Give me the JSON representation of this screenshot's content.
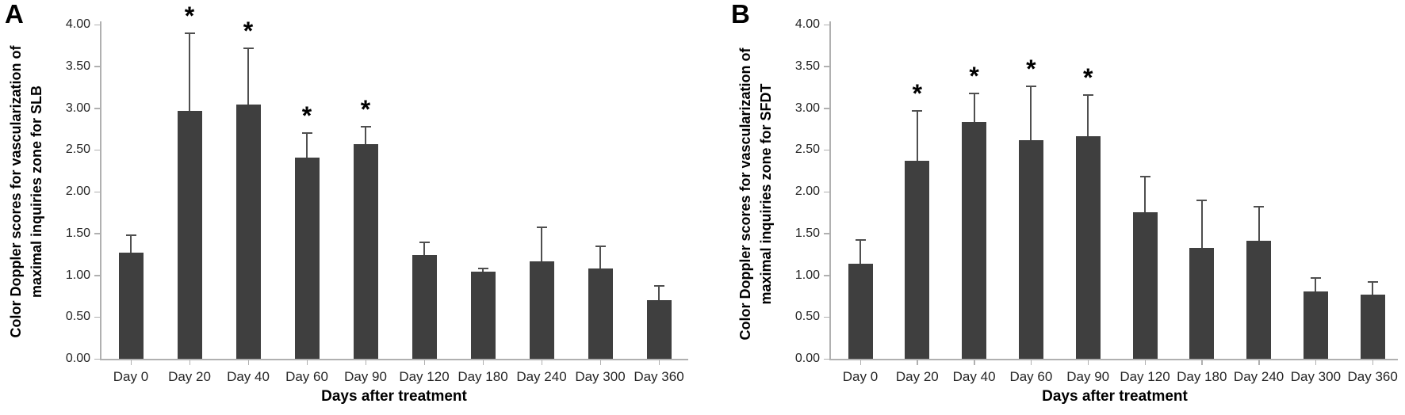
{
  "figure_colors": {
    "bar_color": "#3f3f3f",
    "error_bar_color": "#4f4f4f",
    "axis_color": "#b0b0b0",
    "tick_label_color": "#262626",
    "title_color": "#000000",
    "background": "#ffffff"
  },
  "chart_data": [
    {
      "type": "bar",
      "panel_label": "A",
      "title": "",
      "xlabel": "Days after treatment",
      "ylabel_lines": [
        "Color Doppler scores for vascularization of",
        "maximal inquiries zone for SLB"
      ],
      "ylabel": "Color Doppler scores for vascularization of maximal inquiries zone for SLB",
      "ylim": [
        0,
        4
      ],
      "grid": false,
      "legend": "none",
      "sig_marker": "*",
      "ytick_values": [
        0,
        0.5,
        1,
        1.5,
        2,
        2.5,
        3,
        3.5,
        4
      ],
      "ytick_labels": [
        "0.00",
        "0.50",
        "1.00",
        "1.50",
        "2.00",
        "2.50",
        "3.00",
        "3.50",
        "4.00"
      ],
      "categories": [
        "Day 0",
        "Day 20",
        "Day 40",
        "Day 60",
        "Day 90",
        "Day 120",
        "Day 180",
        "Day 240",
        "Day 300",
        "Day 360"
      ],
      "values": [
        1.27,
        2.97,
        3.04,
        2.41,
        2.57,
        1.24,
        1.04,
        1.17,
        1.08,
        0.7
      ],
      "error_upper": [
        0.21,
        0.93,
        0.68,
        0.29,
        0.21,
        0.15,
        0.04,
        0.4,
        0.27,
        0.17
      ],
      "significant": [
        false,
        true,
        true,
        true,
        true,
        false,
        false,
        false,
        false,
        false
      ]
    },
    {
      "type": "bar",
      "panel_label": "B",
      "title": "",
      "xlabel": "Days after treatment",
      "ylabel_lines": [
        "Color Doppler scores for vascularization of",
        "maximal inquiries zone for SFDT"
      ],
      "ylabel": "Color Doppler scores for vascularization of maximal inquiries zone for SFDT",
      "ylim": [
        0,
        4
      ],
      "grid": false,
      "legend": "none",
      "sig_marker": "*",
      "ytick_values": [
        0,
        0.5,
        1,
        1.5,
        2,
        2.5,
        3,
        3.5,
        4
      ],
      "ytick_labels": [
        "0.00",
        "0.50",
        "1.00",
        "1.50",
        "2.00",
        "2.50",
        "3.00",
        "3.50",
        "4.00"
      ],
      "categories": [
        "Day 0",
        "Day 20",
        "Day 40",
        "Day 60",
        "Day 90",
        "Day 120",
        "Day 180",
        "Day 240",
        "Day 300",
        "Day 360"
      ],
      "values": [
        1.14,
        2.37,
        2.83,
        2.62,
        2.66,
        1.75,
        1.33,
        1.41,
        0.81,
        0.77
      ],
      "error_upper": [
        0.28,
        0.6,
        0.35,
        0.64,
        0.5,
        0.43,
        0.57,
        0.41,
        0.16,
        0.15
      ],
      "significant": [
        false,
        true,
        true,
        true,
        true,
        false,
        false,
        false,
        false,
        false
      ]
    }
  ]
}
